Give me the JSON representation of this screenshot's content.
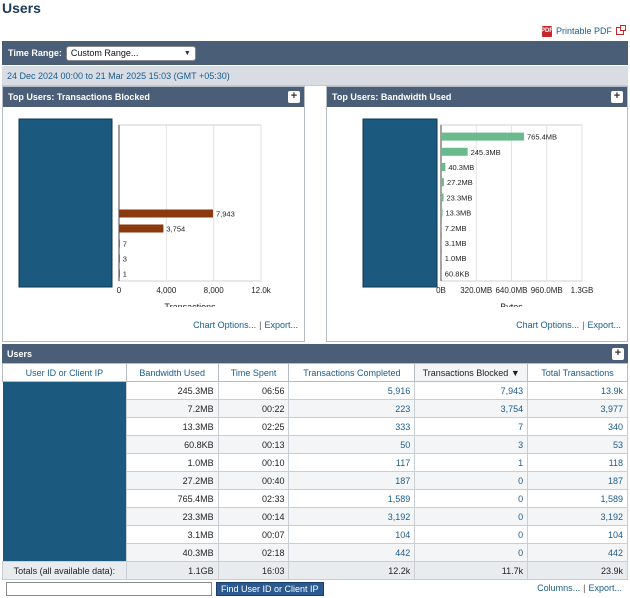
{
  "page": {
    "title": "Users",
    "printable_pdf": "Printable PDF"
  },
  "time_range": {
    "label": "Time Range:",
    "selected": "Custom Range...",
    "date_text": "24 Dec 2024 00:00 to 21 Mar 2025 15:03 (GMT +05:30)"
  },
  "panels": {
    "blocked": {
      "title": "Top Users: Transactions Blocked",
      "chart_options": "Chart Options...",
      "separator": "|",
      "export": "Export..."
    },
    "bandwidth": {
      "title": "Top Users: Bandwidth Used",
      "chart_options": "Chart Options...",
      "separator": "|",
      "export": "Export..."
    }
  },
  "chart_data": [
    {
      "type": "bar",
      "orientation": "horizontal",
      "title": "Top Users: Transactions Blocked",
      "xlabel": "Transactions",
      "values": [
        7943,
        3754,
        7,
        3,
        1
      ],
      "value_labels": [
        "7,943",
        "3,754",
        "7",
        "3",
        "1"
      ],
      "xlim": [
        0,
        12000
      ],
      "xticks": [
        "0",
        "4,000",
        "8,000",
        "12.0k"
      ],
      "color": "#8b3a10",
      "grid": true
    },
    {
      "type": "bar",
      "orientation": "horizontal",
      "title": "Top Users: Bandwidth Used",
      "xlabel": "Bytes",
      "values": [
        765.4,
        245.3,
        40.3,
        27.2,
        23.3,
        13.3,
        7.2,
        3.1,
        1.0,
        0.0608
      ],
      "value_labels": [
        "765.4MB",
        "245.3MB",
        "40.3MB",
        "27.2MB",
        "23.3MB",
        "13.3MB",
        "7.2MB",
        "3.1MB",
        "1.0MB",
        "60.8KB"
      ],
      "xlim": [
        0,
        1300
      ],
      "xticks": [
        "0B",
        "320.0MB",
        "640.0MB",
        "960.0MB",
        "1.3GB"
      ],
      "color": "#6aba8e",
      "grid": true
    }
  ],
  "users": {
    "title": "Users",
    "columns": [
      "User ID or Client IP",
      "Bandwidth Used",
      "Time Spent",
      "Transactions Completed",
      "Transactions Blocked",
      "Total Transactions"
    ],
    "sorted_column": "Transactions Blocked",
    "rows": [
      [
        "245.3MB",
        "06:56",
        "5,916",
        "7,943",
        "13.9k"
      ],
      [
        "7.2MB",
        "00:22",
        "223",
        "3,754",
        "3,977"
      ],
      [
        "13.3MB",
        "02:25",
        "333",
        "7",
        "340"
      ],
      [
        "60.8KB",
        "00:13",
        "50",
        "3",
        "53"
      ],
      [
        "1.0MB",
        "00:10",
        "117",
        "1",
        "118"
      ],
      [
        "27.2MB",
        "00:40",
        "187",
        "0",
        "187"
      ],
      [
        "765.4MB",
        "02:33",
        "1,589",
        "0",
        "1,589"
      ],
      [
        "23.3MB",
        "00:14",
        "3,192",
        "0",
        "3,192"
      ],
      [
        "3.1MB",
        "00:07",
        "104",
        "0",
        "104"
      ],
      [
        "40.3MB",
        "02:18",
        "442",
        "0",
        "442"
      ]
    ],
    "totals": {
      "label": "Totals (all available data):",
      "bandwidth": "1.1GB",
      "time": "16:03",
      "completed": "12.2k",
      "blocked": "11.7k",
      "total": "23.9k"
    },
    "find_button": "Find User ID or Client IP",
    "columns_link": "Columns...",
    "separator": "|",
    "export": "Export..."
  },
  "colors": {
    "header_bg": "#4a5e78",
    "redacted": "#1b5a7e",
    "link": "#1a5c8c"
  }
}
